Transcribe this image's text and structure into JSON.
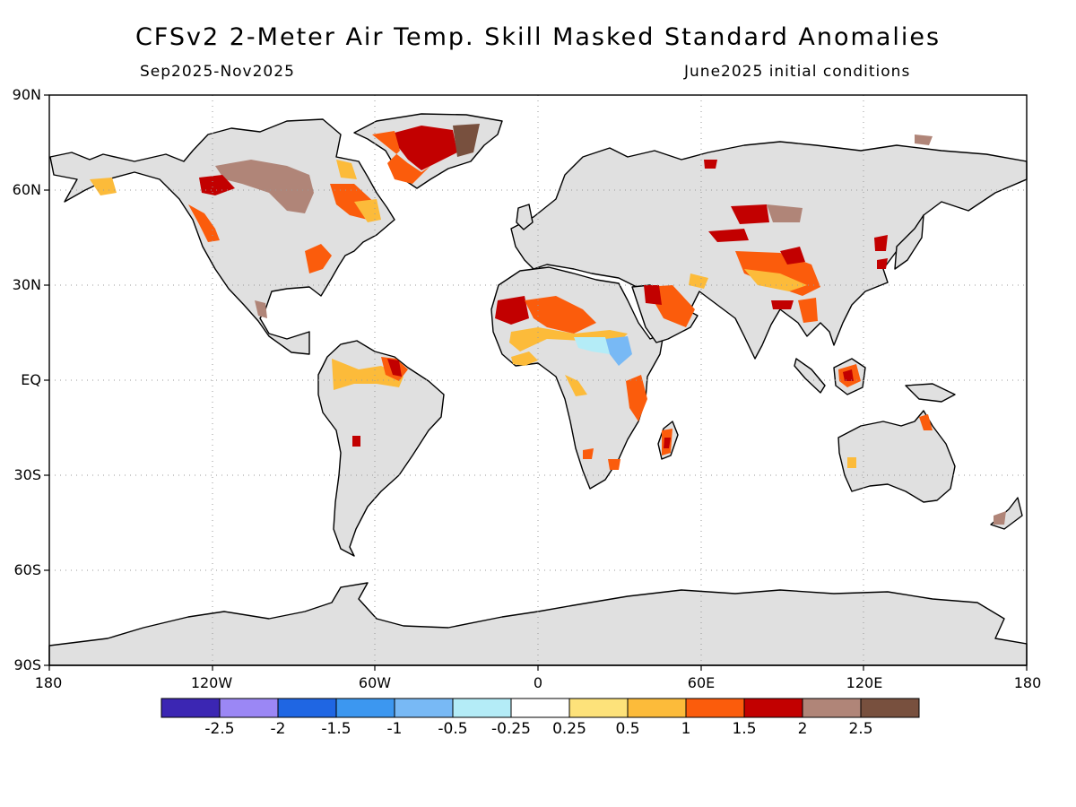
{
  "title": "CFSv2 2-Meter Air Temp. Skill Masked Standard Anomalies",
  "period_label": "Sep2025-Nov2025",
  "init_label": "June2025 initial conditions",
  "lat_labels": [
    "90N",
    "60N",
    "30N",
    "EQ",
    "30S",
    "60S",
    "90S"
  ],
  "lon_labels": [
    "180",
    "120W",
    "60W",
    "0",
    "60E",
    "120E",
    "180"
  ],
  "legend": {
    "colors": [
      "#3b26b3",
      "#9b87f5",
      "#1f66e3",
      "#3c97f0",
      "#78b9f5",
      "#b4ecf7",
      "#ffffff",
      "#fde27a",
      "#fcbb3a",
      "#fb5c0c",
      "#c20000",
      "#b08578",
      "#78503e"
    ],
    "labels": [
      "-2.5",
      "-2",
      "-1.5",
      "-1",
      "-0.5",
      "-0.25",
      "0.25",
      "0.5",
      "1",
      "1.5",
      "2",
      "2.5"
    ]
  },
  "colors": {
    "land_masked": "#e0e0e0",
    "ocean": "#ffffff"
  }
}
